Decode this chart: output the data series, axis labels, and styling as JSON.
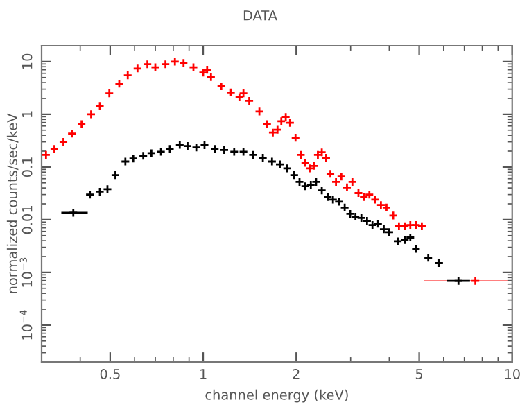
{
  "chart_data": {
    "type": "scatter",
    "title": "DATA",
    "xlabel": "channel energy (keV)",
    "ylabel": "normalized counts/sec/keV",
    "log": "xy",
    "marker": "cross",
    "grid": false,
    "legend": false,
    "xlim": [
      0.3,
      10
    ],
    "ylim": [
      2e-05,
      20
    ],
    "xticks": [
      0.5,
      1,
      2,
      5,
      10
    ],
    "yticks": [
      {
        "value": 0.0001,
        "label": "10$^{−4}$"
      },
      {
        "value": 0.001,
        "label": "10$^{−3}$"
      },
      0.01,
      0.1,
      1,
      10
    ],
    "series": [
      {
        "color": "#ff0000",
        "x": [
          0.31,
          0.33,
          0.353,
          0.376,
          0.404,
          0.434,
          0.463,
          0.497,
          0.535,
          0.57,
          0.613,
          0.66,
          0.7,
          0.755,
          0.81,
          0.864,
          0.93,
          1.0,
          1.03,
          1.06,
          1.145,
          1.23,
          1.31,
          1.35,
          1.41,
          1.52,
          1.61,
          1.68,
          1.74,
          1.79,
          1.85,
          1.91,
          1.99,
          2.07,
          2.14,
          2.21,
          2.28,
          2.35,
          2.42,
          2.5,
          2.58,
          2.69,
          2.8,
          2.92,
          3.04,
          3.18,
          3.31,
          3.45,
          3.6,
          3.76,
          3.92,
          4.12,
          4.3,
          4.49,
          4.68,
          4.88,
          5.1,
          7.6
        ],
        "values": [
          0.17,
          0.22,
          0.3,
          0.43,
          0.65,
          1.0,
          1.44,
          2.5,
          3.8,
          5.5,
          7.4,
          8.9,
          7.8,
          8.9,
          10,
          9.4,
          7.8,
          6.2,
          7.0,
          5.1,
          3.4,
          2.6,
          2.1,
          2.5,
          1.8,
          1.13,
          0.65,
          0.45,
          0.51,
          0.74,
          0.89,
          0.69,
          0.36,
          0.17,
          0.12,
          0.094,
          0.105,
          0.17,
          0.19,
          0.15,
          0.074,
          0.052,
          0.066,
          0.041,
          0.052,
          0.032,
          0.027,
          0.03,
          0.024,
          0.019,
          0.017,
          0.012,
          0.0075,
          0.0075,
          0.0079,
          0.0079,
          0.0075,
          0.00069
        ],
        "xerrors": [
          null,
          null,
          null,
          null,
          null,
          null,
          null,
          null,
          null,
          null,
          null,
          null,
          null,
          null,
          null,
          null,
          null,
          null,
          null,
          null,
          null,
          null,
          null,
          null,
          null,
          null,
          null,
          null,
          null,
          null,
          null,
          null,
          null,
          null,
          null,
          null,
          null,
          null,
          null,
          null,
          null,
          null,
          null,
          null,
          null,
          null,
          null,
          null,
          null,
          null,
          null,
          null,
          null,
          null,
          null,
          null,
          null,
          [
            5.2,
            10
          ]
        ]
      },
      {
        "color": "#000000",
        "x": [
          0.38,
          0.43,
          0.463,
          0.49,
          0.52,
          0.56,
          0.594,
          0.64,
          0.68,
          0.73,
          0.78,
          0.84,
          0.89,
          0.95,
          1.01,
          1.09,
          1.17,
          1.26,
          1.35,
          1.45,
          1.56,
          1.67,
          1.77,
          1.87,
          1.97,
          2.05,
          2.14,
          2.23,
          2.32,
          2.42,
          2.53,
          2.63,
          2.75,
          2.87,
          2.99,
          3.11,
          3.25,
          3.39,
          3.53,
          3.68,
          3.84,
          4.0,
          4.26,
          4.49,
          4.68,
          4.88,
          5.35,
          5.8,
          6.7
        ],
        "values": [
          0.0135,
          0.03,
          0.034,
          0.038,
          0.07,
          0.127,
          0.145,
          0.163,
          0.183,
          0.194,
          0.22,
          0.264,
          0.25,
          0.235,
          0.26,
          0.22,
          0.21,
          0.194,
          0.194,
          0.17,
          0.15,
          0.127,
          0.112,
          0.094,
          0.07,
          0.052,
          0.043,
          0.046,
          0.052,
          0.036,
          0.027,
          0.024,
          0.022,
          0.017,
          0.0129,
          0.0114,
          0.0108,
          0.0095,
          0.0079,
          0.0084,
          0.0066,
          0.0058,
          0.0039,
          0.0041,
          0.0046,
          0.0028,
          0.0019,
          0.0015,
          0.00069
        ],
        "xerrors": [
          [
            0.35,
            0.42
          ],
          null,
          null,
          null,
          null,
          null,
          null,
          null,
          null,
          null,
          null,
          null,
          null,
          null,
          null,
          null,
          null,
          null,
          null,
          null,
          null,
          null,
          null,
          null,
          null,
          null,
          null,
          null,
          null,
          null,
          null,
          null,
          null,
          null,
          null,
          null,
          null,
          null,
          null,
          null,
          null,
          null,
          null,
          null,
          null,
          null,
          null,
          null,
          [
            6.2,
            7.25
          ]
        ]
      }
    ]
  }
}
